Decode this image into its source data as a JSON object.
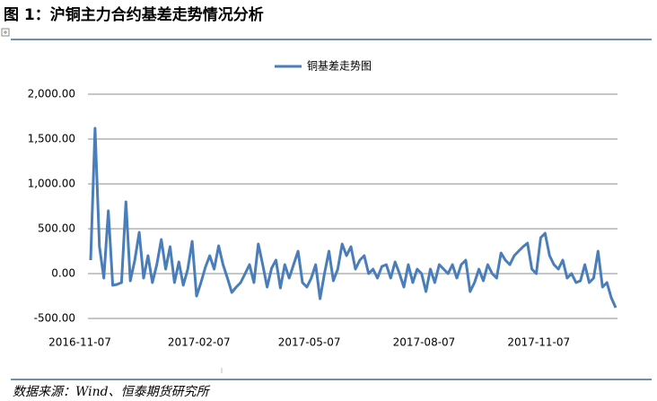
{
  "figure_title": "图 1：沪铜主力合约基差走势情况分析",
  "source": "数据来源：Wind、恒泰期货研究所",
  "chart_data": {
    "type": "line",
    "categories": [
      "2016-11-07",
      null,
      null,
      null,
      null,
      null,
      null,
      null,
      null,
      null,
      null,
      null,
      null,
      null,
      null,
      null,
      null,
      null,
      null,
      null,
      null,
      null,
      null,
      null,
      null,
      null,
      null,
      "2017-02-07",
      null,
      null,
      null,
      null,
      null,
      null,
      null,
      null,
      null,
      null,
      null,
      null,
      null,
      null,
      null,
      null,
      null,
      null,
      null,
      null,
      null,
      null,
      null,
      null,
      "2017-05-07",
      null,
      null,
      null,
      null,
      null,
      null,
      null,
      null,
      null,
      null,
      null,
      null,
      null,
      null,
      null,
      null,
      null,
      null,
      null,
      null,
      null,
      null,
      null,
      null,
      null,
      "2017-08-07",
      null,
      null,
      null,
      null,
      null,
      null,
      null,
      null,
      null,
      null,
      null,
      null,
      null,
      null,
      null,
      null,
      null,
      null,
      null,
      null,
      null,
      null,
      null,
      null,
      null,
      "2017-11-07",
      null,
      null,
      null,
      null,
      null,
      null,
      null,
      null,
      null,
      null,
      null,
      null,
      null,
      null,
      null
    ],
    "series": [
      {
        "name": "铜基差走势图",
        "color": "#4a7ebb",
        "values": [
          150,
          1620,
          300,
          -50,
          700,
          -130,
          -120,
          -100,
          800,
          -80,
          150,
          460,
          -50,
          200,
          -100,
          100,
          380,
          50,
          300,
          -100,
          130,
          -130,
          50,
          360,
          -250,
          -100,
          70,
          200,
          50,
          310,
          100,
          -50,
          -210,
          -150,
          -100,
          0,
          100,
          -100,
          330,
          100,
          -150,
          60,
          150,
          -160,
          100,
          -50,
          100,
          250,
          -100,
          -150,
          -50,
          100,
          -280,
          0,
          250,
          -80,
          50,
          330,
          200,
          300,
          50,
          150,
          200,
          0,
          50,
          -50,
          80,
          100,
          -50,
          130,
          0,
          -150,
          100,
          -100,
          50,
          0,
          -200,
          50,
          -100,
          100,
          50,
          0,
          100,
          -50,
          100,
          150,
          -200,
          -100,
          50,
          -80,
          100,
          0,
          -50,
          230,
          150,
          100,
          200,
          250,
          300,
          340,
          50,
          0,
          400,
          450,
          200,
          100,
          50,
          150,
          -50,
          0,
          -100,
          -80,
          100,
          -100,
          -50,
          250,
          -150,
          -100,
          -270,
          -380
        ]
      }
    ],
    "ylim": [
      -500,
      2000
    ],
    "yticks": [
      {
        "value": -500,
        "label": "-500.00"
      },
      {
        "value": 0,
        "label": "0.00"
      },
      {
        "value": 500,
        "label": "500.00"
      },
      {
        "value": 1000,
        "label": "1,000.00"
      },
      {
        "value": 1500,
        "label": "1,500.00"
      },
      {
        "value": 2000,
        "label": "2,000.00"
      }
    ],
    "grid": true
  }
}
